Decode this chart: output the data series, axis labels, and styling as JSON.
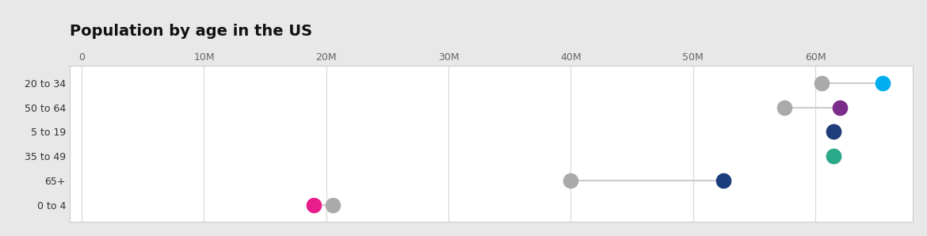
{
  "title": "Population by age in the US",
  "title_fontsize": 14,
  "title_fontweight": "bold",
  "outer_background_color": "#e8e8e8",
  "inner_background_color": "#ffffff",
  "categories": [
    "20 to 34",
    "50 to 64",
    "5 to 19",
    "35 to 49",
    "65+",
    "0 to 4"
  ],
  "x_ticks": [
    0,
    10000000,
    20000000,
    30000000,
    40000000,
    50000000,
    60000000
  ],
  "x_tick_labels": [
    "0",
    "10M",
    "20M",
    "30M",
    "40M",
    "50M",
    "60M"
  ],
  "xlim": [
    -1000000,
    68000000
  ],
  "dot_colors": [
    "#00aeef",
    "#7b2d8b",
    "#1f3d7a",
    "#2aaa8a",
    "#1a3d7c",
    "#e91e8c"
  ],
  "colored_values": [
    65500000,
    62000000,
    61500000,
    61500000,
    52500000,
    19000000
  ],
  "gray_values": [
    60500000,
    57500000,
    61500000,
    61500000,
    40000000,
    20500000
  ],
  "dot_size": 200,
  "gray_color": "#aaaaaa",
  "line_color": "#cccccc",
  "line_width": 1.5,
  "ylabel_fontsize": 9,
  "xlabel_fontsize": 9,
  "grid_color": "#d8d8d8",
  "border_color": "#cccccc"
}
